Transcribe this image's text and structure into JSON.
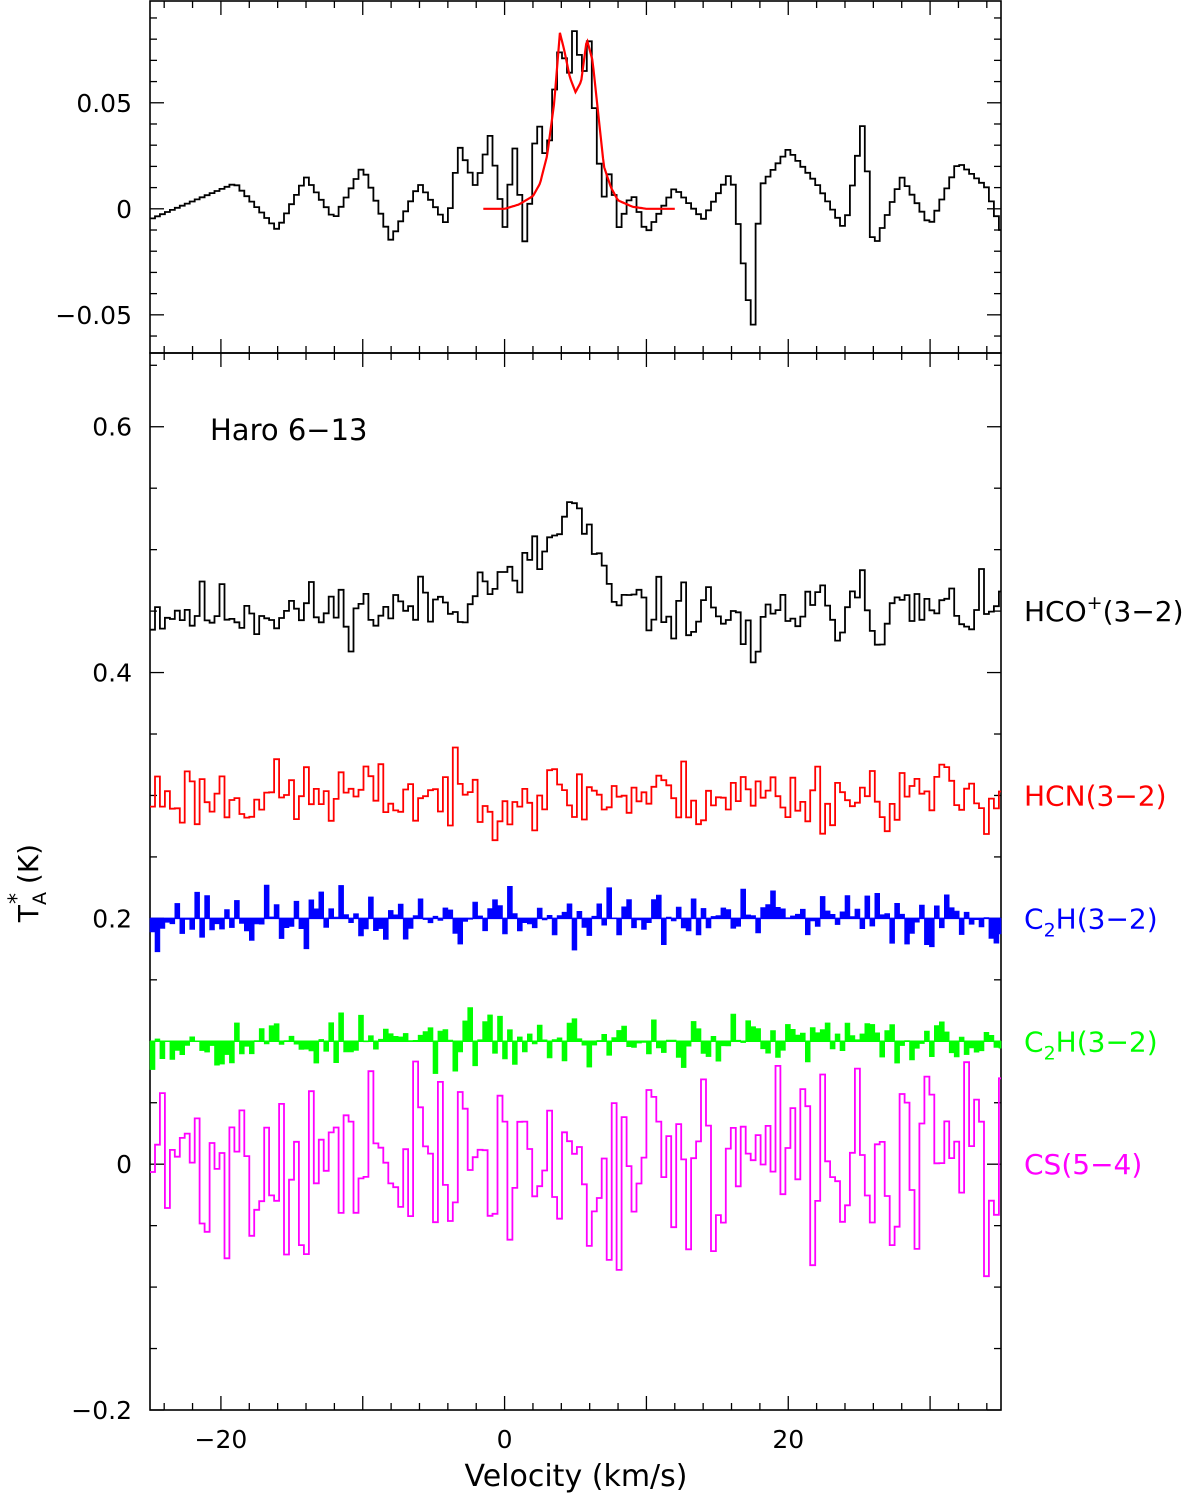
{
  "chart_data": [
    {
      "type": "line",
      "panel": "top",
      "xlim": [
        -25,
        35
      ],
      "ylim": [
        -0.068,
        0.098
      ],
      "yticks": [
        -0.05,
        0,
        0.05
      ],
      "ytick_labels": [
        "−0.05",
        "0",
        "0.05"
      ],
      "xticks": [
        -20,
        0,
        20
      ],
      "series": [
        {
          "color": "#000000",
          "style": "histogram",
          "x": [
            -25,
            -19,
            -16,
            -14,
            -12,
            -10,
            -8,
            -6,
            -4,
            -3.2,
            -2,
            -1,
            0,
            0.7,
            1.5,
            2.3,
            3,
            3.5,
            4,
            4.5,
            5,
            5.5,
            6,
            6.5,
            7,
            7.5,
            8,
            9,
            10,
            12,
            14,
            16,
            17,
            17.5,
            18,
            20,
            22,
            24,
            25.3,
            26,
            28,
            30,
            32,
            34,
            35
          ],
          "y": [
            -0.005,
            0.012,
            -0.01,
            0.015,
            -0.005,
            0.02,
            -0.015,
            0.012,
            -0.008,
            0.03,
            0.01,
            0.035,
            -0.01,
            0.03,
            -0.02,
            0.045,
            0.02,
            0.055,
            0.08,
            0.06,
            0.088,
            0.06,
            0.08,
            0.03,
            0.005,
            0.02,
            -0.01,
            0.008,
            -0.012,
            0.01,
            -0.005,
            0.018,
            -0.035,
            -0.058,
            0.01,
            0.028,
            0.012,
            -0.01,
            0.042,
            -0.02,
            0.015,
            -0.008,
            0.022,
            0.01,
            -0.01
          ]
        },
        {
          "color": "#ff0000",
          "style": "fit",
          "x": [
            -1.5,
            0,
            1,
            2,
            2.5,
            3,
            3.5,
            3.9,
            4.2,
            4.6,
            5,
            5.4,
            5.8,
            6.2,
            6.6,
            7,
            7.5,
            8,
            9,
            10,
            12
          ],
          "y": [
            0,
            0,
            0.002,
            0.006,
            0.012,
            0.025,
            0.05,
            0.083,
            0.075,
            0.062,
            0.055,
            0.06,
            0.08,
            0.07,
            0.045,
            0.02,
            0.01,
            0.004,
            0.001,
            0,
            0
          ]
        }
      ]
    },
    {
      "type": "line",
      "panel": "bottom",
      "title": "Haro 6−13",
      "xlabel": "Velocity (km/s)",
      "ylabel": "T",
      "ylabel_sup": "*",
      "ylabel_sub": "A",
      "ylabel_unit": " (K)",
      "xlim": [
        -25,
        35
      ],
      "ylim": [
        -0.2,
        0.66
      ],
      "yticks": [
        -0.2,
        0,
        0.2,
        0.4,
        0.6
      ],
      "ytick_labels": [
        "−0.2",
        "0",
        "0.2",
        "0.4",
        "0.6"
      ],
      "xticks": [
        -20,
        0,
        20
      ],
      "xtick_labels": [
        "−20",
        "0",
        "20"
      ],
      "series": [
        {
          "name_main": "HCO",
          "name_sup": "+",
          "name_tail": "(3−2)",
          "color": "#000000",
          "style": "histogram",
          "offset": 0.45,
          "noise": 0.012,
          "seed": 11,
          "x": [
            -25,
            -8,
            -3,
            -1,
            0.5,
            2,
            3,
            4,
            4.8,
            5.5,
            6.2,
            7,
            8,
            12,
            16,
            17,
            17.6,
            18.3,
            20,
            24,
            25.3,
            26,
            28,
            35
          ],
          "y": [
            0,
            0,
            0.01,
            0.025,
            0.02,
            0.04,
            0.05,
            0.07,
            0.085,
            0.075,
            0.05,
            0.02,
            0.005,
            0,
            0,
            -0.02,
            -0.055,
            -0.01,
            0,
            0,
            0.035,
            -0.01,
            0,
            0
          ]
        },
        {
          "name_main": "HCN",
          "name_sup": "",
          "name_tail": "(3−2)",
          "color": "#ff0000",
          "style": "histogram",
          "offset": 0.3,
          "noise": 0.014,
          "seed": 23,
          "x": [
            -25,
            35
          ],
          "y": [
            0,
            0
          ]
        },
        {
          "name_main": "C",
          "name_sub": "2",
          "name_tail": "H(3−2)",
          "color": "#0000ff",
          "style": "filled",
          "offset": 0.2,
          "noise": 0.012,
          "seed": 37,
          "x": [
            -25,
            35
          ],
          "y": [
            0,
            0
          ]
        },
        {
          "name_main": "C",
          "name_sub": "2",
          "name_tail": "H(3−2)",
          "color": "#00ff00",
          "style": "filled",
          "offset": 0.1,
          "noise": 0.011,
          "seed": 53,
          "x": [
            -25,
            35
          ],
          "y": [
            0,
            0
          ]
        },
        {
          "name_main": "CS",
          "name_sup": "",
          "name_tail": "(5−4)",
          "color": "#ff00ff",
          "style": "histogram",
          "offset": 0.0,
          "noise": 0.038,
          "seed": 71,
          "x": [
            -25,
            35
          ],
          "y": [
            0,
            0
          ]
        }
      ]
    }
  ]
}
